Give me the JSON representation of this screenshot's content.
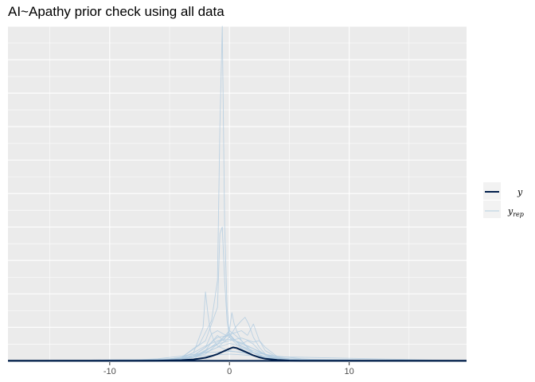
{
  "title": "AI~Apathy prior check using all data",
  "chart_data": {
    "type": "line",
    "title": "AI~Apathy prior check using all data",
    "xlabel": "",
    "ylabel": "",
    "xlim": [
      -18.5,
      19.8
    ],
    "ylim": [
      -0.02,
      5.0
    ],
    "x_ticks": [
      -10,
      0,
      10
    ],
    "x_tick_labels": [
      "-10",
      "0",
      "10"
    ],
    "grid": true,
    "legend_position": "right",
    "legend": [
      {
        "label": "y",
        "subscript": "",
        "color": "#011f4b",
        "width": 2
      },
      {
        "label": "y",
        "subscript": "rep",
        "color": "#b3cde0",
        "width": 1
      }
    ],
    "series": [
      {
        "name": "y",
        "color": "#011f4b",
        "x": [
          -18.5,
          -8,
          -6,
          -4,
          -3,
          -2,
          -1.5,
          -1,
          -0.5,
          0,
          0.3,
          0.6,
          1,
          1.5,
          2,
          2.5,
          3,
          4,
          5,
          6,
          8,
          19.8
        ],
        "y": [
          0,
          0,
          0.003,
          0.01,
          0.02,
          0.045,
          0.07,
          0.1,
          0.14,
          0.18,
          0.2,
          0.19,
          0.16,
          0.12,
          0.08,
          0.05,
          0.03,
          0.012,
          0.004,
          0.001,
          0,
          0
        ]
      },
      {
        "name": "y",
        "color": "#b3cde0",
        "x": [
          -18.5,
          -6,
          -4,
          -2.5,
          -1.5,
          -1,
          -0.8,
          -0.6,
          -0.4,
          -0.2,
          0,
          1,
          2,
          3,
          5,
          19.8
        ],
        "y": [
          0,
          0.005,
          0.05,
          0.25,
          0.6,
          1.2,
          3.5,
          5.0,
          2.0,
          0.8,
          0.4,
          0.2,
          0.12,
          0.06,
          0.01,
          0
        ]
      },
      {
        "name": "y",
        "color": "#b3cde0",
        "x": [
          -18.5,
          -6,
          -4,
          -3,
          -2.2,
          -2,
          -1.8,
          -1.6,
          -1.3,
          -1,
          -0.5,
          0,
          1,
          2,
          3,
          5,
          19.8
        ],
        "y": [
          0,
          0.004,
          0.04,
          0.12,
          0.5,
          1.03,
          0.7,
          0.45,
          0.3,
          0.22,
          0.18,
          0.15,
          0.12,
          0.08,
          0.04,
          0.006,
          0
        ]
      },
      {
        "name": "y",
        "color": "#b3cde0",
        "x": [
          -18.5,
          -6,
          -4,
          -2,
          -1,
          -0.8,
          -0.6,
          -0.4,
          -0.2,
          0,
          1,
          2,
          4,
          19.8
        ],
        "y": [
          0,
          0.005,
          0.05,
          0.3,
          0.8,
          1.9,
          2.0,
          1.2,
          0.6,
          0.35,
          0.18,
          0.08,
          0.02,
          0
        ]
      },
      {
        "name": "y",
        "color": "#b3cde0",
        "x": [
          -18.5,
          -5,
          -3,
          -1,
          0,
          0.5,
          1,
          1.3,
          1.6,
          2,
          2.5,
          3,
          4,
          6,
          19.8
        ],
        "y": [
          0,
          0.005,
          0.05,
          0.2,
          0.35,
          0.5,
          0.6,
          0.65,
          0.55,
          0.35,
          0.2,
          0.1,
          0.04,
          0.005,
          0
        ]
      },
      {
        "name": "y",
        "color": "#b3cde0",
        "x": [
          -18.5,
          -5,
          -3,
          -1,
          0,
          0.5,
          1,
          1.5,
          2,
          2.5,
          3,
          4,
          6,
          19.8
        ],
        "y": [
          0,
          0.005,
          0.06,
          0.25,
          0.4,
          0.42,
          0.45,
          0.38,
          0.55,
          0.3,
          0.15,
          0.05,
          0.005,
          0
        ]
      },
      {
        "name": "y",
        "color": "#b3cde0",
        "x": [
          -18.5,
          -4,
          -2,
          -1,
          0,
          0.2,
          0.4,
          0.6,
          1,
          1.5,
          2,
          3,
          4.5,
          19.8
        ],
        "y": [
          0,
          0.01,
          0.1,
          0.25,
          0.45,
          0.72,
          0.55,
          0.45,
          0.3,
          0.2,
          0.12,
          0.05,
          0.01,
          0
        ]
      },
      {
        "name": "y",
        "color": "#b3cde0",
        "x": [
          -18.5,
          -5,
          -3,
          -2,
          -1,
          0,
          0.5,
          1,
          1.5,
          2,
          2.5,
          3,
          4,
          6,
          19.8
        ],
        "y": [
          0,
          0.01,
          0.08,
          0.2,
          0.35,
          0.38,
          0.3,
          0.25,
          0.3,
          0.25,
          0.15,
          0.08,
          0.03,
          0.005,
          0
        ]
      },
      {
        "name": "y",
        "color": "#b3cde0",
        "x": [
          -18.5,
          -5,
          -4,
          -3,
          -2,
          -1,
          0,
          1,
          2,
          3,
          4,
          5,
          19.8
        ],
        "y": [
          0,
          0.02,
          0.05,
          0.12,
          0.22,
          0.3,
          0.32,
          0.27,
          0.18,
          0.1,
          0.04,
          0.01,
          0
        ]
      },
      {
        "name": "y",
        "color": "#b3cde0",
        "x": [
          -18.5,
          -8,
          -6,
          -4,
          -2,
          0,
          2,
          4,
          6,
          8,
          19.8
        ],
        "y": [
          0,
          0.01,
          0.03,
          0.07,
          0.12,
          0.14,
          0.12,
          0.07,
          0.03,
          0.01,
          0
        ]
      },
      {
        "name": "y",
        "color": "#b3cde0",
        "x": [
          -18.5,
          -4,
          -3,
          -2,
          -1.5,
          -1,
          0,
          1,
          2,
          3,
          4,
          5,
          19.8
        ],
        "y": [
          0,
          0.02,
          0.08,
          0.2,
          0.4,
          0.45,
          0.35,
          0.25,
          0.18,
          0.09,
          0.03,
          0.005,
          0
        ]
      },
      {
        "name": "y",
        "color": "#b3cde0",
        "x": [
          -18.5,
          -6,
          -4,
          -2,
          -1,
          0,
          1,
          2,
          3,
          4,
          6,
          19.8
        ],
        "y": [
          0,
          0.01,
          0.04,
          0.12,
          0.2,
          0.26,
          0.22,
          0.15,
          0.09,
          0.05,
          0.01,
          0
        ]
      },
      {
        "name": "y",
        "color": "#b3cde0",
        "x": [
          -18.5,
          -3,
          -2,
          -1.5,
          -1,
          -0.5,
          0,
          0.5,
          1,
          1.5,
          2,
          3,
          19.8
        ],
        "y": [
          0,
          0.02,
          0.15,
          0.28,
          0.38,
          0.3,
          0.45,
          0.38,
          0.3,
          0.2,
          0.12,
          0.03,
          0
        ]
      },
      {
        "name": "y",
        "color": "#b3cde0",
        "x": [
          -18.5,
          -10,
          -7,
          -5,
          -3,
          -1,
          0,
          1,
          3,
          5,
          7,
          10,
          19.8
        ],
        "y": [
          0,
          0.005,
          0.015,
          0.03,
          0.06,
          0.09,
          0.1,
          0.09,
          0.06,
          0.03,
          0.015,
          0.005,
          0
        ]
      },
      {
        "name": "y",
        "color": "#b3cde0",
        "x": [
          -18.5,
          -4,
          -3,
          -2,
          -1,
          0,
          1,
          2,
          2.5,
          3,
          4,
          19.8
        ],
        "y": [
          0,
          0.02,
          0.06,
          0.16,
          0.25,
          0.3,
          0.34,
          0.28,
          0.3,
          0.2,
          0.06,
          0
        ]
      },
      {
        "name": "y",
        "color": "#b3cde0",
        "x": [
          -18.5,
          -5,
          -3,
          -2,
          -1,
          -0.5,
          0,
          0.5,
          1,
          2,
          3,
          5,
          19.8
        ],
        "y": [
          0,
          0.01,
          0.05,
          0.14,
          0.28,
          0.35,
          0.4,
          0.3,
          0.22,
          0.12,
          0.05,
          0.01,
          0
        ]
      }
    ]
  }
}
